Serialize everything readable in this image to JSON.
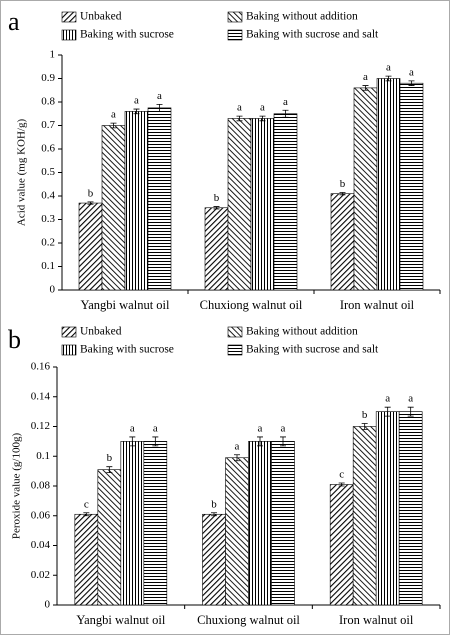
{
  "chart_data": [
    {
      "type": "bar",
      "panel_label": "a",
      "y_label": "Acid value (mg KOH/g)",
      "categories": [
        "Yangbi walnut oil",
        "Chuxiong walnut oil",
        "Iron walnut oil"
      ],
      "ylim": [
        0,
        1
      ],
      "yticks": [
        0,
        0.1,
        0.2,
        0.3,
        0.4,
        0.5,
        0.6,
        0.7,
        0.8,
        0.9,
        1
      ],
      "series": [
        {
          "name": "Unbaked",
          "color": "#000000",
          "pattern": "diag-up",
          "values": [
            0.37,
            0.35,
            0.41
          ],
          "errors": [
            0.005,
            0.005,
            0.005
          ],
          "labels": [
            "b",
            "b",
            "b"
          ]
        },
        {
          "name": "Baking without addition",
          "color": "#000000",
          "pattern": "diag-down",
          "values": [
            0.7,
            0.73,
            0.86
          ],
          "errors": [
            0.01,
            0.01,
            0.01
          ],
          "labels": [
            "a",
            "a",
            "a"
          ]
        },
        {
          "name": "Baking with sucrose",
          "color": "#000000",
          "pattern": "vertical",
          "values": [
            0.76,
            0.73,
            0.9
          ],
          "errors": [
            0.01,
            0.01,
            0.01
          ],
          "labels": [
            "a",
            "a",
            "a"
          ]
        },
        {
          "name": "Baking with sucrose and salt",
          "color": "#000000",
          "pattern": "horizontal",
          "values": [
            0.775,
            0.75,
            0.88
          ],
          "errors": [
            0.015,
            0.015,
            0.01
          ],
          "labels": [
            "a",
            "a",
            "a"
          ]
        }
      ]
    },
    {
      "type": "bar",
      "panel_label": "b",
      "y_label": "Peroxide value (g/100g)",
      "categories": [
        "Yangbi walnut oil",
        "Chuxiong walnut oil",
        "Iron walnut oil"
      ],
      "ylim": [
        0,
        0.16
      ],
      "yticks": [
        0,
        0.02,
        0.04,
        0.06,
        0.08,
        0.1,
        0.12,
        0.14,
        0.16
      ],
      "series": [
        {
          "name": "Unbaked",
          "color": "#000000",
          "pattern": "diag-up",
          "values": [
            0.061,
            0.061,
            0.081
          ],
          "errors": [
            0.001,
            0.001,
            0.001
          ],
          "labels": [
            "c",
            "b",
            "c"
          ]
        },
        {
          "name": "Baking without addition",
          "color": "#000000",
          "pattern": "diag-down",
          "values": [
            0.091,
            0.099,
            0.12
          ],
          "errors": [
            0.002,
            0.002,
            0.002
          ],
          "labels": [
            "b",
            "a",
            "b"
          ]
        },
        {
          "name": "Baking with sucrose",
          "color": "#000000",
          "pattern": "vertical",
          "values": [
            0.11,
            0.11,
            0.13
          ],
          "errors": [
            0.003,
            0.003,
            0.003
          ],
          "labels": [
            "a",
            "a",
            "a"
          ]
        },
        {
          "name": "Baking with sucrose and salt",
          "color": "#000000",
          "pattern": "horizontal",
          "values": [
            0.11,
            0.11,
            0.13
          ],
          "errors": [
            0.003,
            0.003,
            0.003
          ],
          "labels": [
            "a",
            "a",
            "a"
          ]
        }
      ]
    }
  ]
}
